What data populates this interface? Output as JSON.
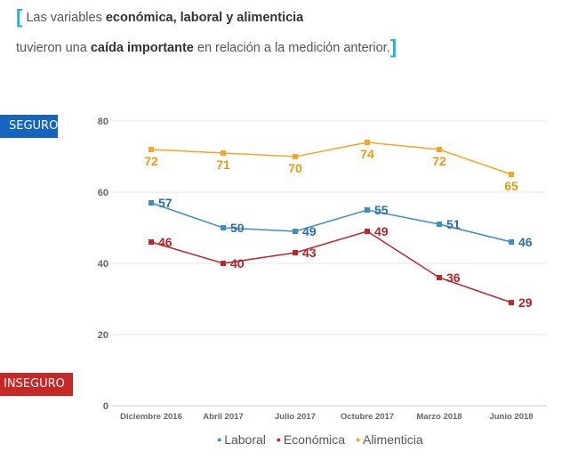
{
  "header": {
    "line1_prefix": "Las variables ",
    "line1_bold": "económica, laboral y alimenticia",
    "line2_prefix": "tuvieron una ",
    "line2_bold": "caída importante",
    "line2_suffix": " en relación a la medición anterior."
  },
  "labels": {
    "seguro": "SEGURO",
    "inseguro": "INSEGURO"
  },
  "chart_data": {
    "type": "line",
    "categories": [
      "Diciembre 2016",
      "Abril 2017",
      "Julio 2017",
      "Octubre 2017",
      "Marzo 2018",
      "Junio 2018"
    ],
    "ylim": [
      0,
      80
    ],
    "yticks": [
      0,
      20,
      40,
      60,
      80
    ],
    "grid": true,
    "legend_position": "bottom",
    "series": [
      {
        "name": "Laboral",
        "color": "#3a8fc4",
        "label_color": "#2a6fa8",
        "values": [
          57,
          50,
          49,
          55,
          51,
          46
        ]
      },
      {
        "name": "Económica",
        "color": "#c0272d",
        "label_color": "#b3232a",
        "values": [
          46,
          40,
          43,
          49,
          36,
          29
        ]
      },
      {
        "name": "Alimenticia",
        "color": "#f5a623",
        "label_color": "#e89a14",
        "values": [
          72,
          71,
          70,
          74,
          72,
          65
        ]
      }
    ]
  }
}
